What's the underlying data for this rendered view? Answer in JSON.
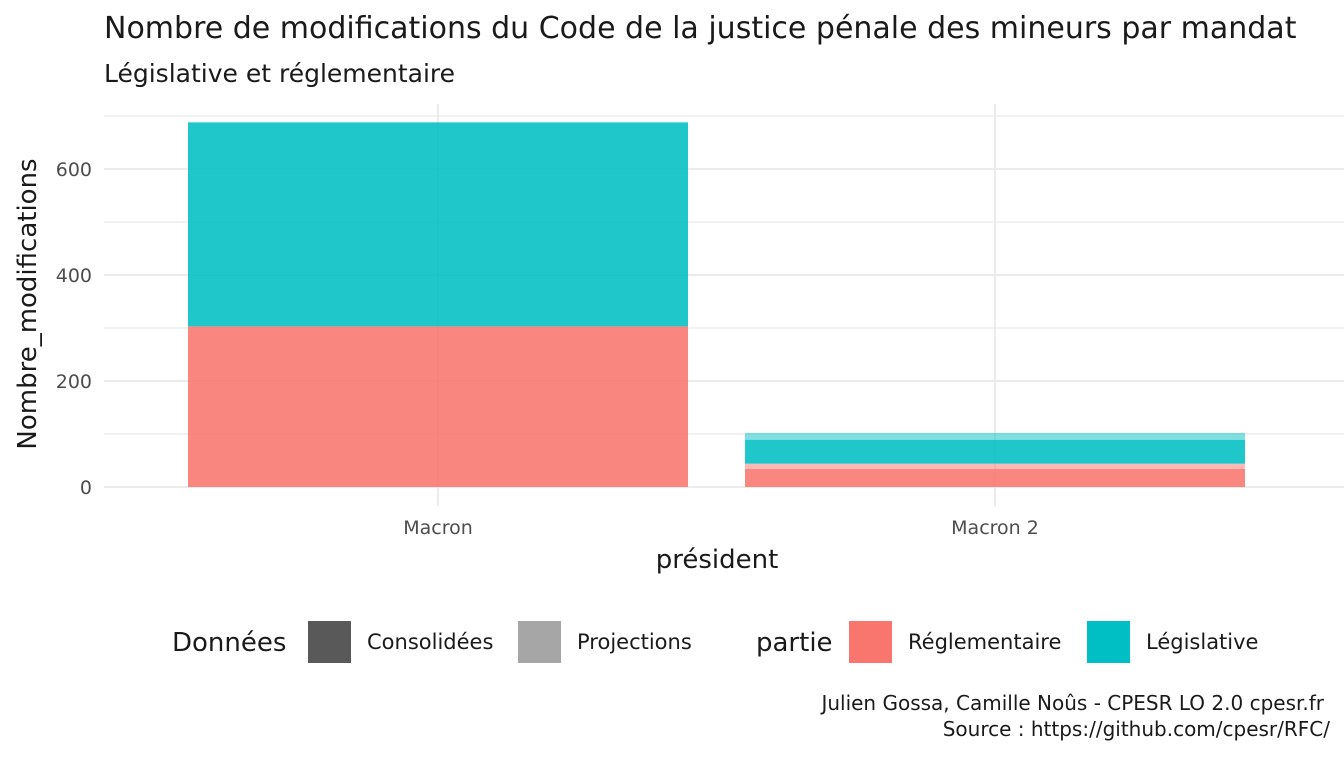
{
  "chart_data": {
    "type": "bar",
    "stacked": true,
    "title": "Nombre de modifications du Code de la justice pénale des mineurs par mandat",
    "subtitle": "Législative et réglementaire",
    "xlabel": "président",
    "ylabel": "Nombre_modifications",
    "categories": [
      "Macron",
      "Macron 2"
    ],
    "ylim": [
      0,
      700
    ],
    "yticks": [
      0,
      200,
      400,
      600
    ],
    "grid": true,
    "series": [
      {
        "name": "Réglementaire",
        "donnees": "Consolidées",
        "color": "#F8766D",
        "values": [
          303,
          34
        ]
      },
      {
        "name": "Réglementaire",
        "donnees": "Projections",
        "color": "#F8766D",
        "values": [
          0,
          10
        ]
      },
      {
        "name": "Législative",
        "donnees": "Consolidées",
        "color": "#00BFC4",
        "values": [
          385,
          45
        ]
      },
      {
        "name": "Législative",
        "donnees": "Projections",
        "color": "#00BFC4",
        "values": [
          0,
          13
        ]
      }
    ],
    "legend": {
      "placement": "bottom",
      "donnees_title": "Données",
      "donnees_items": [
        {
          "label": "Consolidées",
          "color": "#595959"
        },
        {
          "label": "Projections",
          "color": "#a6a6a6"
        }
      ],
      "partie_title": "partie",
      "partie_items": [
        {
          "label": "Réglementaire",
          "color": "#F8766D"
        },
        {
          "label": "Législative",
          "color": "#00BFC4"
        }
      ]
    },
    "caption": [
      "Julien Gossa, Camille Noûs - CPESR LO 2.0 cpesr.fr",
      "Source : https://github.com/cpesr/RFC/"
    ]
  }
}
